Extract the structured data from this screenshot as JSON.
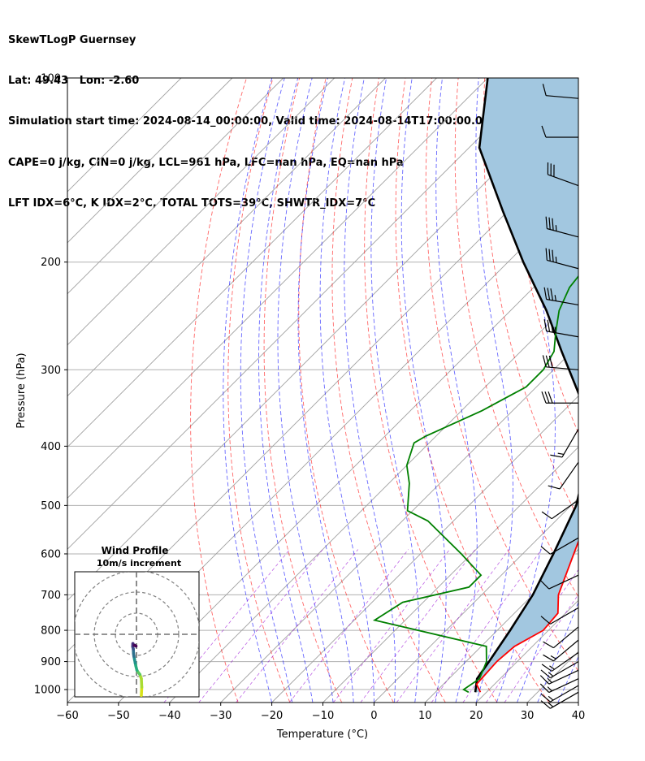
{
  "header": {
    "line1": "SkewTLogP Guernsey",
    "line2": "Lat: 49.43   Lon: -2.60",
    "line3": "Simulation start time: 2024-08-14_00:00:00, Valid time: 2024-08-14T17:00:00.00",
    "line4": "CAPE=0 j/kg, CIN=0 j/kg, LCL=961 hPa, LFC=nan hPa, EQ=nan hPa",
    "line5": "LFT IDX=6$^\\circ$C, K IDX=2$^\\circ$C, TOTAL TOTS=39$^\\circ$C, SHWTR_IDX=7$^\\circ$C"
  },
  "chart_data": [
    {
      "type": "line",
      "subtype": "skew-t log-p",
      "xlabel": "Temperature ($^\\circ$C)",
      "ylabel": "Pressure (hPa)",
      "xlim": [
        -60,
        40
      ],
      "ylim": [
        1050,
        100
      ],
      "y_scale": "log",
      "x_ticks": [
        "−60",
        "−50",
        "−40",
        "−30",
        "−20",
        "−10",
        "0",
        "10",
        "20",
        "30",
        "40"
      ],
      "y_ticks": [
        "100",
        "200",
        "300",
        "400",
        "500",
        "600",
        "700",
        "800",
        "900",
        "1000"
      ],
      "grid": true,
      "series": [
        {
          "role": "temperature",
          "color": "#ff0000",
          "points": [
            [
              18.8,
              1010
            ],
            [
              16.5,
              980
            ],
            [
              16,
              900
            ],
            [
              16.5,
              850
            ],
            [
              19,
              800
            ],
            [
              18.5,
              750
            ],
            [
              15,
              700
            ],
            [
              10,
              600
            ],
            [
              6,
              530
            ],
            [
              2,
              460
            ],
            [
              -1,
              420
            ],
            [
              -1.5,
              380
            ],
            [
              -3,
              350
            ],
            [
              -8,
              300
            ],
            [
              -13,
              270
            ],
            [
              -16,
              250
            ],
            [
              -19,
              230
            ],
            [
              -21,
              210
            ],
            [
              -22.5,
              190
            ],
            [
              -23.5,
              180
            ],
            [
              -22,
              175
            ],
            [
              -20,
              165
            ],
            [
              -16,
              150
            ],
            [
              -13,
              140
            ],
            [
              -10.5,
              120
            ],
            [
              -9.5,
              110
            ],
            [
              -8.5,
              100
            ]
          ]
        },
        {
          "role": "dewpoint",
          "color": "#008000",
          "points": [
            [
              16.5,
              1010
            ],
            [
              15,
              1000
            ],
            [
              16,
              960
            ],
            [
              14,
              900
            ],
            [
              11,
              850
            ],
            [
              -16,
              770
            ],
            [
              -14,
              720
            ],
            [
              -4,
              680
            ],
            [
              -4,
              650
            ],
            [
              -12,
              600
            ],
            [
              -25,
              530
            ],
            [
              -31,
              510
            ],
            [
              -36,
              460
            ],
            [
              -40,
              430
            ],
            [
              -43,
              395
            ],
            [
              -42,
              385
            ],
            [
              -36,
              350
            ],
            [
              -32,
              320
            ],
            [
              -32,
              300
            ],
            [
              -33.5,
              280
            ],
            [
              -37,
              260
            ],
            [
              -40.5,
              240
            ],
            [
              -43,
              220
            ],
            [
              -44,
              200
            ],
            [
              -45,
              190
            ],
            [
              -47,
              175
            ],
            [
              -49,
              168
            ],
            [
              -53.5,
              153
            ],
            [
              -46,
              135
            ],
            [
              -36,
              100
            ]
          ]
        },
        {
          "role": "parcel",
          "color": "#000000",
          "points": [
            [
              17.8,
              1010
            ],
            [
              15.5,
              960
            ],
            [
              14.5,
              900
            ],
            [
              12.5,
              800
            ],
            [
              10,
              700
            ],
            [
              6,
              600
            ],
            [
              1,
              500
            ],
            [
              -5,
              430
            ],
            [
              -12,
              380
            ],
            [
              -20,
              330
            ],
            [
              -32,
              280
            ],
            [
              -43,
              240
            ],
            [
              -57,
              200
            ],
            [
              -71,
              165
            ],
            [
              -88,
              130
            ],
            [
              -100,
              100
            ]
          ]
        }
      ],
      "shaded_area": {
        "between": [
          "temperature",
          "parcel"
        ],
        "color": "#a2c7e0"
      },
      "wind_barbs": [
        {
          "p": 1010,
          "speed_kt": 15,
          "dir_deg": 240
        },
        {
          "p": 985,
          "speed_kt": 15,
          "dir_deg": 240
        },
        {
          "p": 960,
          "speed_kt": 15,
          "dir_deg": 245
        },
        {
          "p": 930,
          "speed_kt": 15,
          "dir_deg": 245
        },
        {
          "p": 900,
          "speed_kt": 15,
          "dir_deg": 240
        },
        {
          "p": 870,
          "speed_kt": 15,
          "dir_deg": 235
        },
        {
          "p": 830,
          "speed_kt": 15,
          "dir_deg": 230
        },
        {
          "p": 790,
          "speed_kt": 10,
          "dir_deg": 230
        },
        {
          "p": 735,
          "speed_kt": 10,
          "dir_deg": 240
        },
        {
          "p": 650,
          "speed_kt": 10,
          "dir_deg": 245
        },
        {
          "p": 565,
          "speed_kt": 10,
          "dir_deg": 240
        },
        {
          "p": 490,
          "speed_kt": 10,
          "dir_deg": 235
        },
        {
          "p": 425,
          "speed_kt": 10,
          "dir_deg": 215
        },
        {
          "p": 375,
          "speed_kt": 15,
          "dir_deg": 210
        },
        {
          "p": 340,
          "speed_kt": 30,
          "dir_deg": 270
        },
        {
          "p": 300,
          "speed_kt": 30,
          "dir_deg": 275
        },
        {
          "p": 265,
          "speed_kt": 35,
          "dir_deg": 280
        },
        {
          "p": 235,
          "speed_kt": 35,
          "dir_deg": 280
        },
        {
          "p": 205,
          "speed_kt": 35,
          "dir_deg": 285
        },
        {
          "p": 182,
          "speed_kt": 35,
          "dir_deg": 285
        },
        {
          "p": 150,
          "speed_kt": 30,
          "dir_deg": 290
        },
        {
          "p": 125,
          "speed_kt": 10,
          "dir_deg": 270
        },
        {
          "p": 108,
          "speed_kt": 10,
          "dir_deg": 275
        }
      ],
      "dry_adiabat_color": "#ff0000",
      "moist_adiabat_color": "#0000ff",
      "mixing_ratio_color": "#9400d3",
      "isotherm_color": "#a0a0a0"
    },
    {
      "type": "line",
      "subtype": "hodograph",
      "title": "Wind Profile",
      "subtitle": "10m/s increment",
      "rings_ms": [
        10,
        20,
        30
      ],
      "u_ms": [
        2.3,
        2.5,
        2.3,
        1.6,
        0.8,
        0.2,
        -0.3,
        -0.6,
        -0.9,
        -1.2,
        -1.4,
        -1.5,
        -1.8,
        -1.7,
        -1.6,
        -0.9,
        -0.2
      ],
      "v_ms": [
        -29,
        -25,
        -21,
        -19,
        -18,
        -17,
        -15,
        -13.5,
        -12,
        -10.5,
        -9,
        -7,
        -5.8,
        -4.4,
        -5.5,
        -5.2,
        -5.6
      ],
      "colormap": "viridis"
    }
  ]
}
